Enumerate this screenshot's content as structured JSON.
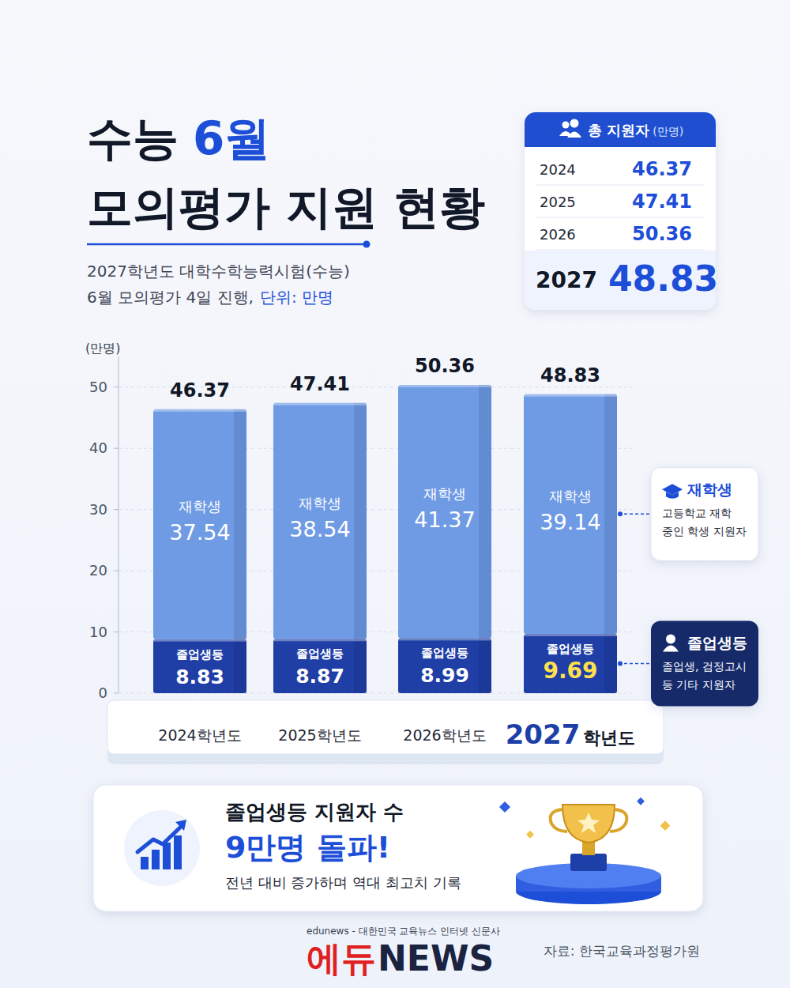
{
  "header": {
    "title_prefix": "수능",
    "title_highlight": "6월",
    "title_line2": "모의평가 지원 현황",
    "subtitle_line1": "2027학년도 대학수학능력시험(수능)",
    "subtitle_line2": "6월 모의평가 4일 진행,",
    "subtitle_unit": "단위: 만명"
  },
  "summary_box": {
    "title": "총 지원자",
    "unit": "(만명)",
    "rows": [
      {
        "year": "2024",
        "value": 46.37
      },
      {
        "year": "2025",
        "value": 47.41
      },
      {
        "year": "2026",
        "value": 50.36
      },
      {
        "year": "2027",
        "value": 48.83
      }
    ]
  },
  "chart_data": {
    "type": "bar",
    "stacked": true,
    "data_labels": true,
    "grid": true,
    "legend": "right",
    "y_label": "(만명)",
    "categories": [
      "2024학년도",
      "2025학년도",
      "2026학년도",
      "2027학년도"
    ],
    "series": [
      {
        "name": "졸업생등",
        "color": "#1f3ea6",
        "values": [
          8.83,
          8.87,
          8.99,
          9.69
        ]
      },
      {
        "name": "재학생",
        "color": "#6f9be5",
        "values": [
          37.54,
          38.54,
          41.37,
          39.14
        ]
      }
    ],
    "total_labels": [
      46.37,
      47.41,
      50.36,
      48.83
    ],
    "ylim": [
      0,
      55
    ],
    "yticks": [
      0,
      10,
      20,
      30,
      40,
      50
    ]
  },
  "legend_descriptions": [
    "졸업생, 검정고시 등 기타 지원자",
    "고등학교 재학 중인 학생 지원자"
  ],
  "callout": {
    "line1": "졸업생등 지원자 수",
    "line2": "9만명 돌파!",
    "line3": "전년 대비 증가하며 역대 최고치 기록"
  },
  "footer": {
    "tagline": "edunews - 대한민국 교육뉴스 인터넷 신문사",
    "logo_red": "에듀",
    "logo_dark": "NEWS",
    "source": "자료: 한국교육과정평가원"
  }
}
